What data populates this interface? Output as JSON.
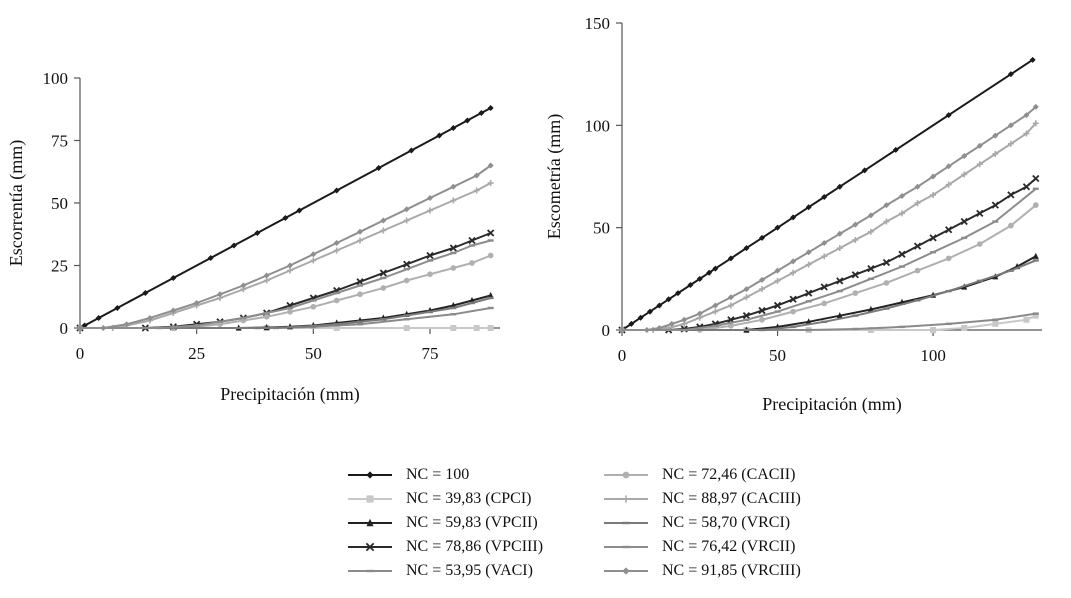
{
  "chart_data": [
    {
      "type": "line",
      "xlabel": "Precipitación (mm)",
      "ylabel": "Escorrentía (mm)",
      "xlim": [
        0,
        90
      ],
      "ylim": [
        0,
        100
      ],
      "xticks": [
        0,
        25,
        50,
        75
      ],
      "yticks": [
        0,
        25,
        50,
        75,
        100
      ],
      "series": [
        {
          "name": "NC = 100",
          "color": "#1a1a1a",
          "marker": "diamond",
          "x": [
            0,
            1,
            4,
            8,
            14,
            20,
            28,
            33,
            38,
            44,
            47,
            55,
            64,
            71,
            77,
            80,
            83,
            86,
            88
          ],
          "y": [
            0,
            1,
            4,
            8,
            14,
            20,
            28,
            33,
            38,
            44,
            47,
            55,
            64,
            71,
            77,
            80,
            83,
            86,
            88
          ]
        },
        {
          "name": "NC = 39,83 (CPCI)",
          "color": "#c8c8c8",
          "marker": "square",
          "x": [
            0,
            20,
            40,
            55,
            70,
            80,
            85,
            88
          ],
          "y": [
            0,
            0,
            0,
            0,
            0,
            0,
            0,
            0
          ]
        },
        {
          "name": "NC = 59,83 (VPCII)",
          "color": "#222222",
          "marker": "triangle",
          "x": [
            0,
            34,
            40,
            45,
            50,
            55,
            60,
            65,
            70,
            75,
            80,
            84,
            88
          ],
          "y": [
            0,
            0,
            0.2,
            0.5,
            1,
            2,
            3,
            4,
            5.5,
            7,
            9,
            11,
            13
          ]
        },
        {
          "name": "NC = 78,86 (VPCIII)",
          "color": "#2a2a2a",
          "marker": "x",
          "x": [
            0,
            14,
            20,
            25,
            30,
            35,
            40,
            45,
            50,
            55,
            60,
            65,
            70,
            75,
            80,
            84,
            88
          ],
          "y": [
            0,
            0,
            0.5,
            1.5,
            2.5,
            4,
            6,
            9,
            12,
            15,
            18.5,
            22,
            25.5,
            29,
            32,
            35,
            38
          ]
        },
        {
          "name": "NC = 53,95 (VACI)",
          "color": "#8a8a8a",
          "marker": "dash",
          "x": [
            0,
            42,
            50,
            60,
            70,
            80,
            88
          ],
          "y": [
            0,
            0,
            0.5,
            1.5,
            3.5,
            5.5,
            8
          ]
        },
        {
          "name": "NC = 72,46 (CACII)",
          "color": "#b0b0b0",
          "marker": "circle",
          "x": [
            0,
            20,
            25,
            30,
            35,
            40,
            45,
            50,
            55,
            60,
            65,
            70,
            75,
            80,
            84,
            88
          ],
          "y": [
            0,
            0,
            0.5,
            1.5,
            3,
            4.5,
            6.5,
            8.5,
            11,
            13.5,
            16,
            19,
            21.5,
            24,
            26,
            29
          ]
        },
        {
          "name": "NC = 88,97 (CACIII)",
          "color": "#a9a9a9",
          "marker": "plus",
          "x": [
            0,
            7,
            10,
            15,
            20,
            25,
            30,
            35,
            40,
            45,
            50,
            55,
            60,
            65,
            70,
            75,
            80,
            85,
            88
          ],
          "y": [
            0,
            0,
            1,
            3,
            6,
            9,
            12,
            15.5,
            19,
            23,
            27,
            31,
            35,
            39,
            43,
            47,
            51,
            55,
            58
          ]
        },
        {
          "name": "NC = 58,70 (VRCI)",
          "color": "#7a7a7a",
          "marker": "dash",
          "x": [
            0,
            38,
            45,
            50,
            55,
            60,
            65,
            70,
            75,
            80,
            84,
            88
          ],
          "y": [
            0,
            0,
            0.3,
            0.8,
            1.5,
            2.5,
            3.5,
            5,
            6.5,
            8,
            10,
            12
          ]
        },
        {
          "name": "NC = 76,42 (VRCII)",
          "color": "#8c8c8c",
          "marker": "dash",
          "x": [
            0,
            17,
            25,
            30,
            35,
            40,
            45,
            50,
            55,
            60,
            65,
            70,
            75,
            80,
            84,
            88
          ],
          "y": [
            0,
            0,
            1,
            2.5,
            4,
            6,
            8,
            11,
            14,
            17,
            20,
            23.5,
            27,
            30,
            33,
            35
          ]
        },
        {
          "name": "NC = 91,85 (VRCIII)",
          "color": "#8f8f8f",
          "marker": "diamond",
          "x": [
            0,
            5,
            10,
            15,
            20,
            25,
            30,
            35,
            40,
            45,
            50,
            55,
            60,
            65,
            70,
            75,
            80,
            85,
            88
          ],
          "y": [
            0,
            0,
            1.5,
            4,
            7,
            10,
            13.5,
            17,
            21,
            25,
            29.5,
            34,
            38.5,
            43,
            47.5,
            52,
            56.5,
            61,
            65
          ]
        }
      ]
    },
    {
      "type": "line",
      "xlabel": "Precipitación (mm)",
      "ylabel": "Escometría (mm)",
      "xlim": [
        0,
        135
      ],
      "ylim": [
        0,
        150
      ],
      "xticks": [
        0,
        50,
        100
      ],
      "yticks": [
        0,
        50,
        100,
        150
      ],
      "series": [
        {
          "name": "NC = 100",
          "color": "#1a1a1a",
          "marker": "diamond",
          "x": [
            0,
            3,
            6,
            9,
            12,
            15,
            18,
            22,
            25,
            28,
            30,
            35,
            40,
            45,
            50,
            55,
            60,
            65,
            70,
            78,
            88,
            105,
            125,
            132
          ],
          "y": [
            0,
            3,
            6,
            9,
            12,
            15,
            18,
            22,
            25,
            28,
            30,
            35,
            40,
            45,
            50,
            55,
            60,
            65,
            70,
            78,
            88,
            105,
            125,
            132
          ]
        },
        {
          "name": "NC = 39,83 (CPCI)",
          "color": "#c8c8c8",
          "marker": "square",
          "x": [
            0,
            40,
            60,
            80,
            100,
            110,
            120,
            130,
            133
          ],
          "y": [
            0,
            0,
            0,
            0,
            0,
            1,
            3,
            5,
            7
          ]
        },
        {
          "name": "NC = 59,83 (VPCII)",
          "color": "#222222",
          "marker": "triangle",
          "x": [
            0,
            40,
            50,
            60,
            70,
            80,
            90,
            100,
            110,
            120,
            127,
            133
          ],
          "y": [
            0,
            0,
            1.5,
            4,
            7,
            10,
            13.5,
            17,
            21,
            26,
            31,
            36
          ]
        },
        {
          "name": "NC = 78,86 (VPCIII)",
          "color": "#2a2a2a",
          "marker": "x",
          "x": [
            0,
            15,
            20,
            25,
            30,
            35,
            40,
            45,
            50,
            55,
            60,
            65,
            70,
            75,
            80,
            85,
            90,
            95,
            100,
            105,
            110,
            115,
            120,
            125,
            130,
            133
          ],
          "y": [
            0,
            0,
            0.5,
            1.5,
            3,
            5,
            7,
            9.5,
            12,
            15,
            18,
            21,
            24,
            27,
            30,
            33,
            37,
            41,
            45,
            49,
            53,
            57,
            61,
            66,
            70,
            74
          ]
        },
        {
          "name": "NC = 53,95 (VACI)",
          "color": "#8a8a8a",
          "marker": "dash",
          "x": [
            0,
            60,
            75,
            90,
            105,
            120,
            133
          ],
          "y": [
            0,
            0,
            0.5,
            1.5,
            3,
            5,
            8
          ]
        },
        {
          "name": "NC = 72,46 (CACII)",
          "color": "#b0b0b0",
          "marker": "circle",
          "x": [
            0,
            25,
            35,
            45,
            55,
            65,
            75,
            85,
            95,
            105,
            115,
            125,
            133
          ],
          "y": [
            0,
            0,
            2,
            5,
            9,
            13,
            18,
            23,
            29,
            35,
            42,
            51,
            61
          ]
        },
        {
          "name": "NC = 88,97 (CACIII)",
          "color": "#a9a9a9",
          "marker": "plus",
          "x": [
            0,
            10,
            15,
            20,
            25,
            30,
            35,
            40,
            45,
            50,
            55,
            60,
            65,
            70,
            75,
            80,
            85,
            90,
            95,
            100,
            105,
            110,
            115,
            120,
            125,
            130,
            133
          ],
          "y": [
            0,
            0,
            1,
            3,
            6,
            9,
            12,
            16,
            20,
            24,
            28,
            32,
            36,
            40,
            44,
            48,
            53,
            57,
            62,
            66,
            71,
            76,
            81,
            86,
            91,
            96,
            101
          ]
        },
        {
          "name": "NC = 58,70 (VRCI)",
          "color": "#7a7a7a",
          "marker": "dash",
          "x": [
            0,
            45,
            55,
            65,
            75,
            85,
            95,
            105,
            115,
            125,
            133
          ],
          "y": [
            0,
            0,
            1.5,
            4,
            7,
            10.5,
            14.5,
            19,
            24,
            29,
            34
          ]
        },
        {
          "name": "NC = 76,42 (VRCII)",
          "color": "#8c8c8c",
          "marker": "dash",
          "x": [
            0,
            20,
            30,
            40,
            50,
            60,
            70,
            80,
            90,
            100,
            110,
            120,
            133
          ],
          "y": [
            0,
            0,
            2,
            5,
            9,
            14,
            19,
            25,
            31,
            38,
            45,
            53,
            69
          ]
        },
        {
          "name": "NC = 91,85 (VRCIII)",
          "color": "#8f8f8f",
          "marker": "diamond",
          "x": [
            0,
            8,
            12,
            16,
            20,
            25,
            30,
            35,
            40,
            45,
            50,
            55,
            60,
            65,
            70,
            75,
            80,
            85,
            90,
            95,
            100,
            105,
            110,
            115,
            120,
            125,
            130,
            133
          ],
          "y": [
            0,
            0,
            1,
            3,
            5,
            8,
            12,
            16,
            20,
            24.5,
            29,
            33.5,
            38,
            42.5,
            47,
            51.5,
            56,
            61,
            65.5,
            70,
            75,
            80,
            85,
            90,
            95,
            100,
            105,
            109
          ]
        }
      ]
    }
  ],
  "legend": {
    "left_column": [
      {
        "label": "NC = 100",
        "series": 0
      },
      {
        "label": "NC = 39,83 (CPCI)",
        "series": 1
      },
      {
        "label": "NC = 59,83 (VPCII)",
        "series": 2
      },
      {
        "label": "NC = 78,86 (VPCIII)",
        "series": 3
      },
      {
        "label": "NC = 53,95 (VACI)",
        "series": 4
      }
    ],
    "right_column": [
      {
        "label": "NC = 72,46 (CACII)",
        "series": 5
      },
      {
        "label": "NC = 88,97 (CACIII)",
        "series": 6
      },
      {
        "label": "NC = 58,70 (VRCI)",
        "series": 7
      },
      {
        "label": "NC = 76,42 (VRCII)",
        "series": 8
      },
      {
        "label": "NC = 91,85 (VRCIII)",
        "series": 9
      }
    ]
  }
}
